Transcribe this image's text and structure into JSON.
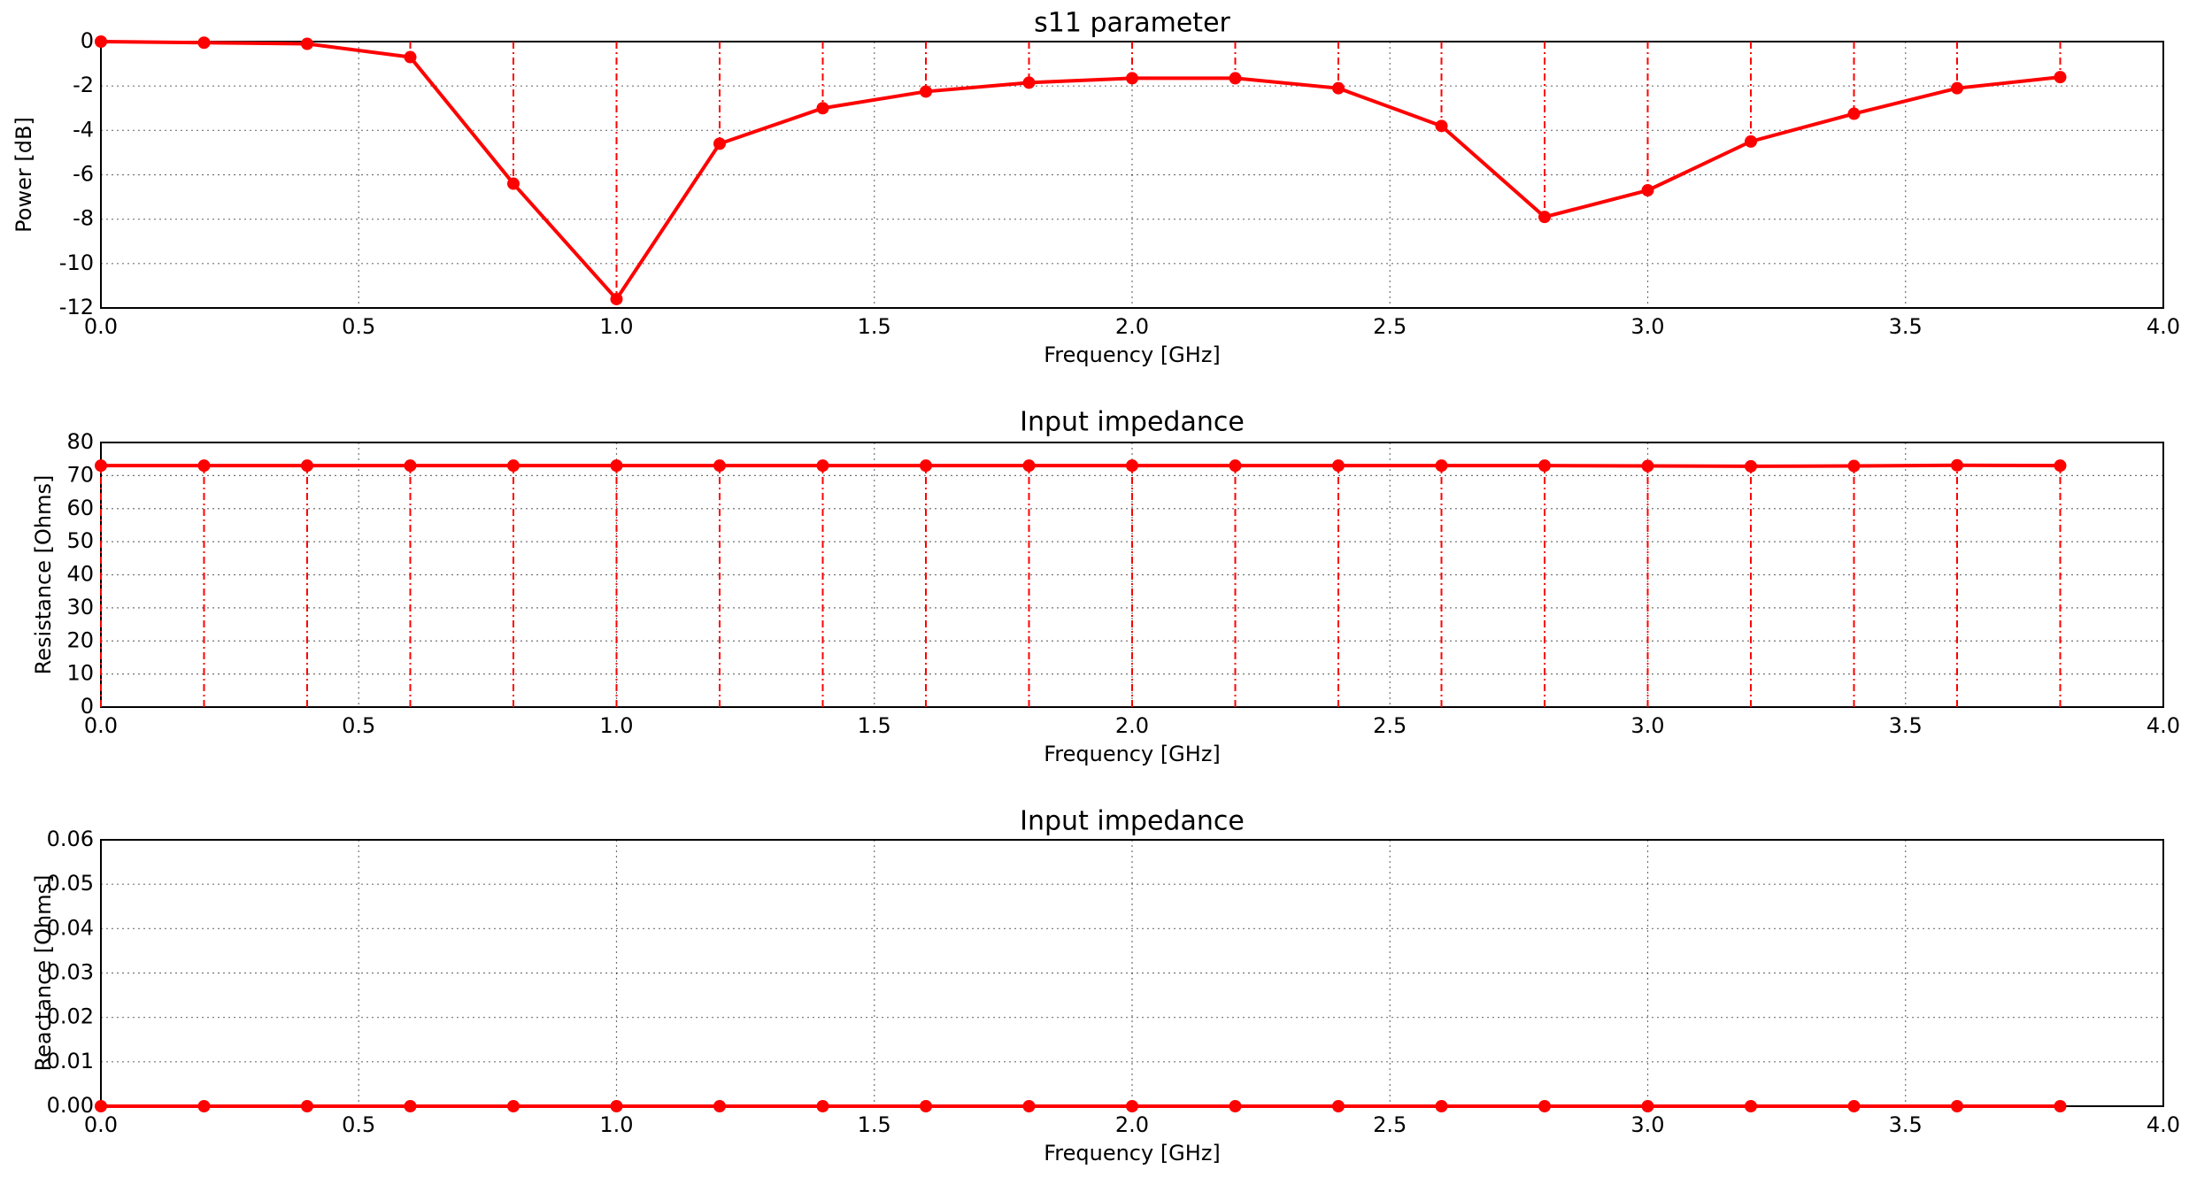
{
  "chart_data": [
    {
      "type": "line",
      "title": "s11 parameter",
      "xlabel": "Frequency [GHz]",
      "ylabel": "Power [dB]",
      "x": [
        0,
        0.2,
        0.4,
        0.6,
        0.8,
        1.0,
        1.2,
        1.4,
        1.6,
        1.8,
        2.0,
        2.2,
        2.4,
        2.6,
        2.8,
        3.0,
        3.2,
        3.4,
        3.6,
        3.8
      ],
      "values": [
        0,
        -0.05,
        -0.1,
        -0.7,
        -6.4,
        -11.6,
        -4.6,
        -3.0,
        -2.25,
        -1.85,
        -1.65,
        -1.65,
        -2.1,
        -3.8,
        -7.9,
        -6.7,
        -4.5,
        -3.25,
        -2.1,
        -1.6
      ],
      "color": "#ff0000",
      "grid": true,
      "xlim": [
        0,
        4
      ],
      "xticks": [
        {
          "value": 0,
          "label": "0.0"
        },
        0.5,
        {
          "value": 1,
          "label": "1.0"
        },
        1.5,
        {
          "value": 2,
          "label": "2.0"
        },
        2.5,
        {
          "value": 3,
          "label": "3.0"
        },
        3.5,
        {
          "value": 4,
          "label": "4.0"
        }
      ],
      "ylim": [
        -12,
        0
      ],
      "yticks": [
        -12,
        -10,
        -8,
        -6,
        -4,
        -2,
        0
      ]
    },
    {
      "type": "line",
      "title": "Input impedance",
      "xlabel": "Frequency [GHz]",
      "ylabel": "Resistance [Ohms]",
      "x": [
        0,
        0.2,
        0.4,
        0.6,
        0.8,
        1.0,
        1.2,
        1.4,
        1.6,
        1.8,
        2.0,
        2.2,
        2.4,
        2.6,
        2.8,
        3.0,
        3.2,
        3.4,
        3.6,
        3.8
      ],
      "values": [
        73,
        73,
        73,
        73,
        73,
        73,
        73,
        73,
        73,
        73,
        73,
        73,
        73,
        73,
        73,
        72.9,
        72.8,
        72.9,
        73.1,
        73
      ],
      "color": "#ff0000",
      "grid": true,
      "xlim": [
        0,
        4
      ],
      "xticks": [
        {
          "value": 0,
          "label": "0.0"
        },
        0.5,
        {
          "value": 1,
          "label": "1.0"
        },
        1.5,
        {
          "value": 2,
          "label": "2.0"
        },
        2.5,
        {
          "value": 3,
          "label": "3.0"
        },
        3.5,
        {
          "value": 4,
          "label": "4.0"
        }
      ],
      "ylim": [
        0,
        80
      ],
      "yticks": [
        0,
        10,
        20,
        30,
        40,
        50,
        60,
        70,
        80
      ]
    },
    {
      "type": "line",
      "title": "Input impedance",
      "xlabel": "Frequency [GHz]",
      "ylabel": "Reactance [Ohms]",
      "x": [
        0,
        0.2,
        0.4,
        0.6,
        0.8,
        1.0,
        1.2,
        1.4,
        1.6,
        1.8,
        2.0,
        2.2,
        2.4,
        2.6,
        2.8,
        3.0,
        3.2,
        3.4,
        3.6,
        3.8
      ],
      "values": [
        0,
        0,
        0,
        0,
        0,
        0,
        0,
        0,
        0,
        0,
        0,
        0,
        0,
        0,
        0,
        0,
        0,
        0,
        0,
        0
      ],
      "color": "#ff0000",
      "grid": true,
      "xlim": [
        0,
        4
      ],
      "xticks": [
        {
          "value": 0,
          "label": "0.0"
        },
        0.5,
        {
          "value": 1,
          "label": "1.0"
        },
        1.5,
        {
          "value": 2,
          "label": "2.0"
        },
        2.5,
        {
          "value": 3,
          "label": "3.0"
        },
        3.5,
        {
          "value": 4,
          "label": "4.0"
        }
      ],
      "ylim": [
        0,
        0.06
      ],
      "yticks": [
        {
          "value": 0,
          "label": "0.00"
        },
        0.01,
        0.02,
        0.03,
        0.04,
        0.05,
        0.06
      ]
    }
  ]
}
